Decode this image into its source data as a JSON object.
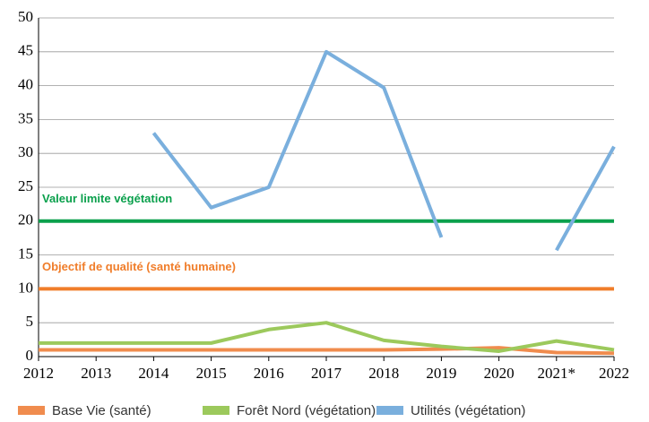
{
  "chart_data": {
    "type": "line",
    "categories": [
      "2012",
      "2013",
      "2014",
      "2015",
      "2016",
      "2017",
      "2018",
      "2019",
      "2020",
      "2021*",
      "2022"
    ],
    "series": [
      {
        "name": "Base Vie (santé)",
        "color": "#f08c4e",
        "values": [
          1,
          1,
          1,
          1,
          1,
          1,
          1,
          1.1,
          1.3,
          0.6,
          0.5
        ]
      },
      {
        "name": "Forêt Nord (végétation)",
        "color": "#9cc95c",
        "values": [
          2,
          2,
          2,
          2,
          4,
          5,
          2.4,
          1.5,
          0.8,
          2.3,
          1.0
        ]
      },
      {
        "name": "Utilités (végétation)",
        "color": "#7aafdd",
        "values": [
          null,
          null,
          33,
          22,
          25,
          45,
          39.7,
          17.6,
          null,
          15.7,
          31
        ]
      }
    ],
    "reference_lines": [
      {
        "value": 20,
        "label": "Valeur limite végétation",
        "color": "#0aa04c"
      },
      {
        "value": 10,
        "label": "Objectif de qualité (santé humaine)",
        "color": "#f07d2a"
      }
    ],
    "ylim": [
      0,
      50
    ],
    "yticks": [
      0,
      5,
      10,
      15,
      20,
      25,
      30,
      35,
      40,
      45,
      50
    ],
    "grid": true,
    "legend": "bottom"
  }
}
